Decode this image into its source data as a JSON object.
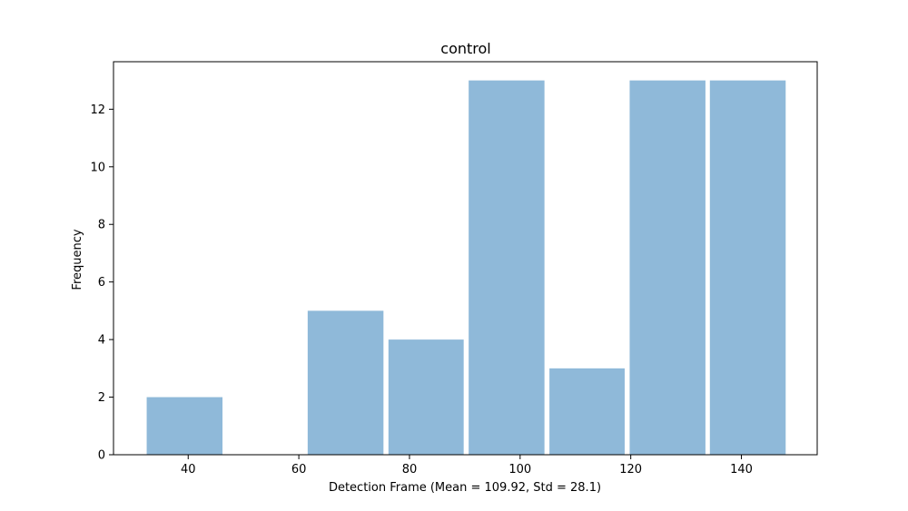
{
  "chart_data": {
    "type": "bar",
    "title": "control",
    "xlabel": "Detection Frame (Mean = 109.92, Std = 28.1)",
    "ylabel": "Frequency",
    "bins": [
      {
        "start": 32.5,
        "end": 46.2,
        "count": 2
      },
      {
        "start": 46.2,
        "end": 61.0,
        "count": 0
      },
      {
        "start": 61.6,
        "end": 75.3,
        "count": 5
      },
      {
        "start": 76.2,
        "end": 89.8,
        "count": 4
      },
      {
        "start": 90.7,
        "end": 104.4,
        "count": 13
      },
      {
        "start": 105.3,
        "end": 118.9,
        "count": 3
      },
      {
        "start": 119.8,
        "end": 133.5,
        "count": 13
      },
      {
        "start": 134.3,
        "end": 148.0,
        "count": 13
      }
    ],
    "xlim": [
      26.5,
      153.7
    ],
    "ylim": [
      0,
      13.65
    ],
    "xticks": [
      40,
      60,
      80,
      100,
      120,
      140
    ],
    "yticks": [
      0,
      2,
      4,
      6,
      8,
      10,
      12
    ],
    "bar_color": "#8fb9d9",
    "grid": false,
    "legend": "none"
  }
}
